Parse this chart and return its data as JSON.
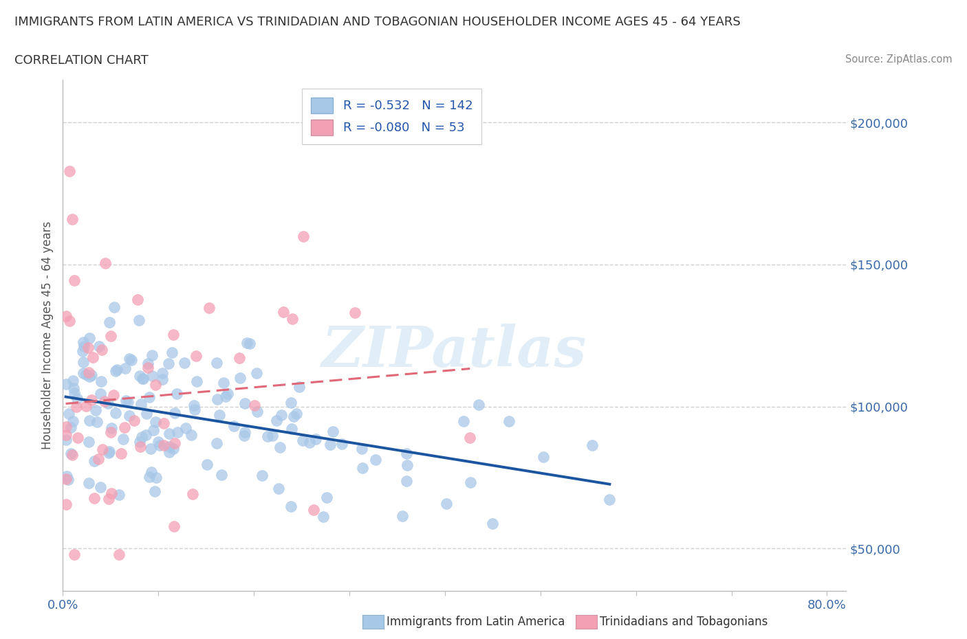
{
  "title": "IMMIGRANTS FROM LATIN AMERICA VS TRINIDADIAN AND TOBAGONIAN HOUSEHOLDER INCOME AGES 45 - 64 YEARS",
  "subtitle": "CORRELATION CHART",
  "source": "Source: ZipAtlas.com",
  "ylabel": "Householder Income Ages 45 - 64 years",
  "xlim": [
    0.0,
    0.82
  ],
  "ylim": [
    35000,
    215000
  ],
  "yticks": [
    50000,
    100000,
    150000,
    200000
  ],
  "xticks": [
    0.0,
    0.1,
    0.2,
    0.3,
    0.4,
    0.5,
    0.6,
    0.7,
    0.8
  ],
  "blue_R": -0.532,
  "blue_N": 142,
  "pink_R": -0.08,
  "pink_N": 53,
  "blue_color": "#a8c8e8",
  "blue_line_color": "#1b55a0",
  "pink_color": "#f4a0b4",
  "pink_line_color": "#e06878",
  "legend_blue_label": "Immigrants from Latin America",
  "legend_pink_label": "Trinidadians and Tobagonians",
  "watermark": "ZIPatlas",
  "background_color": "#ffffff"
}
